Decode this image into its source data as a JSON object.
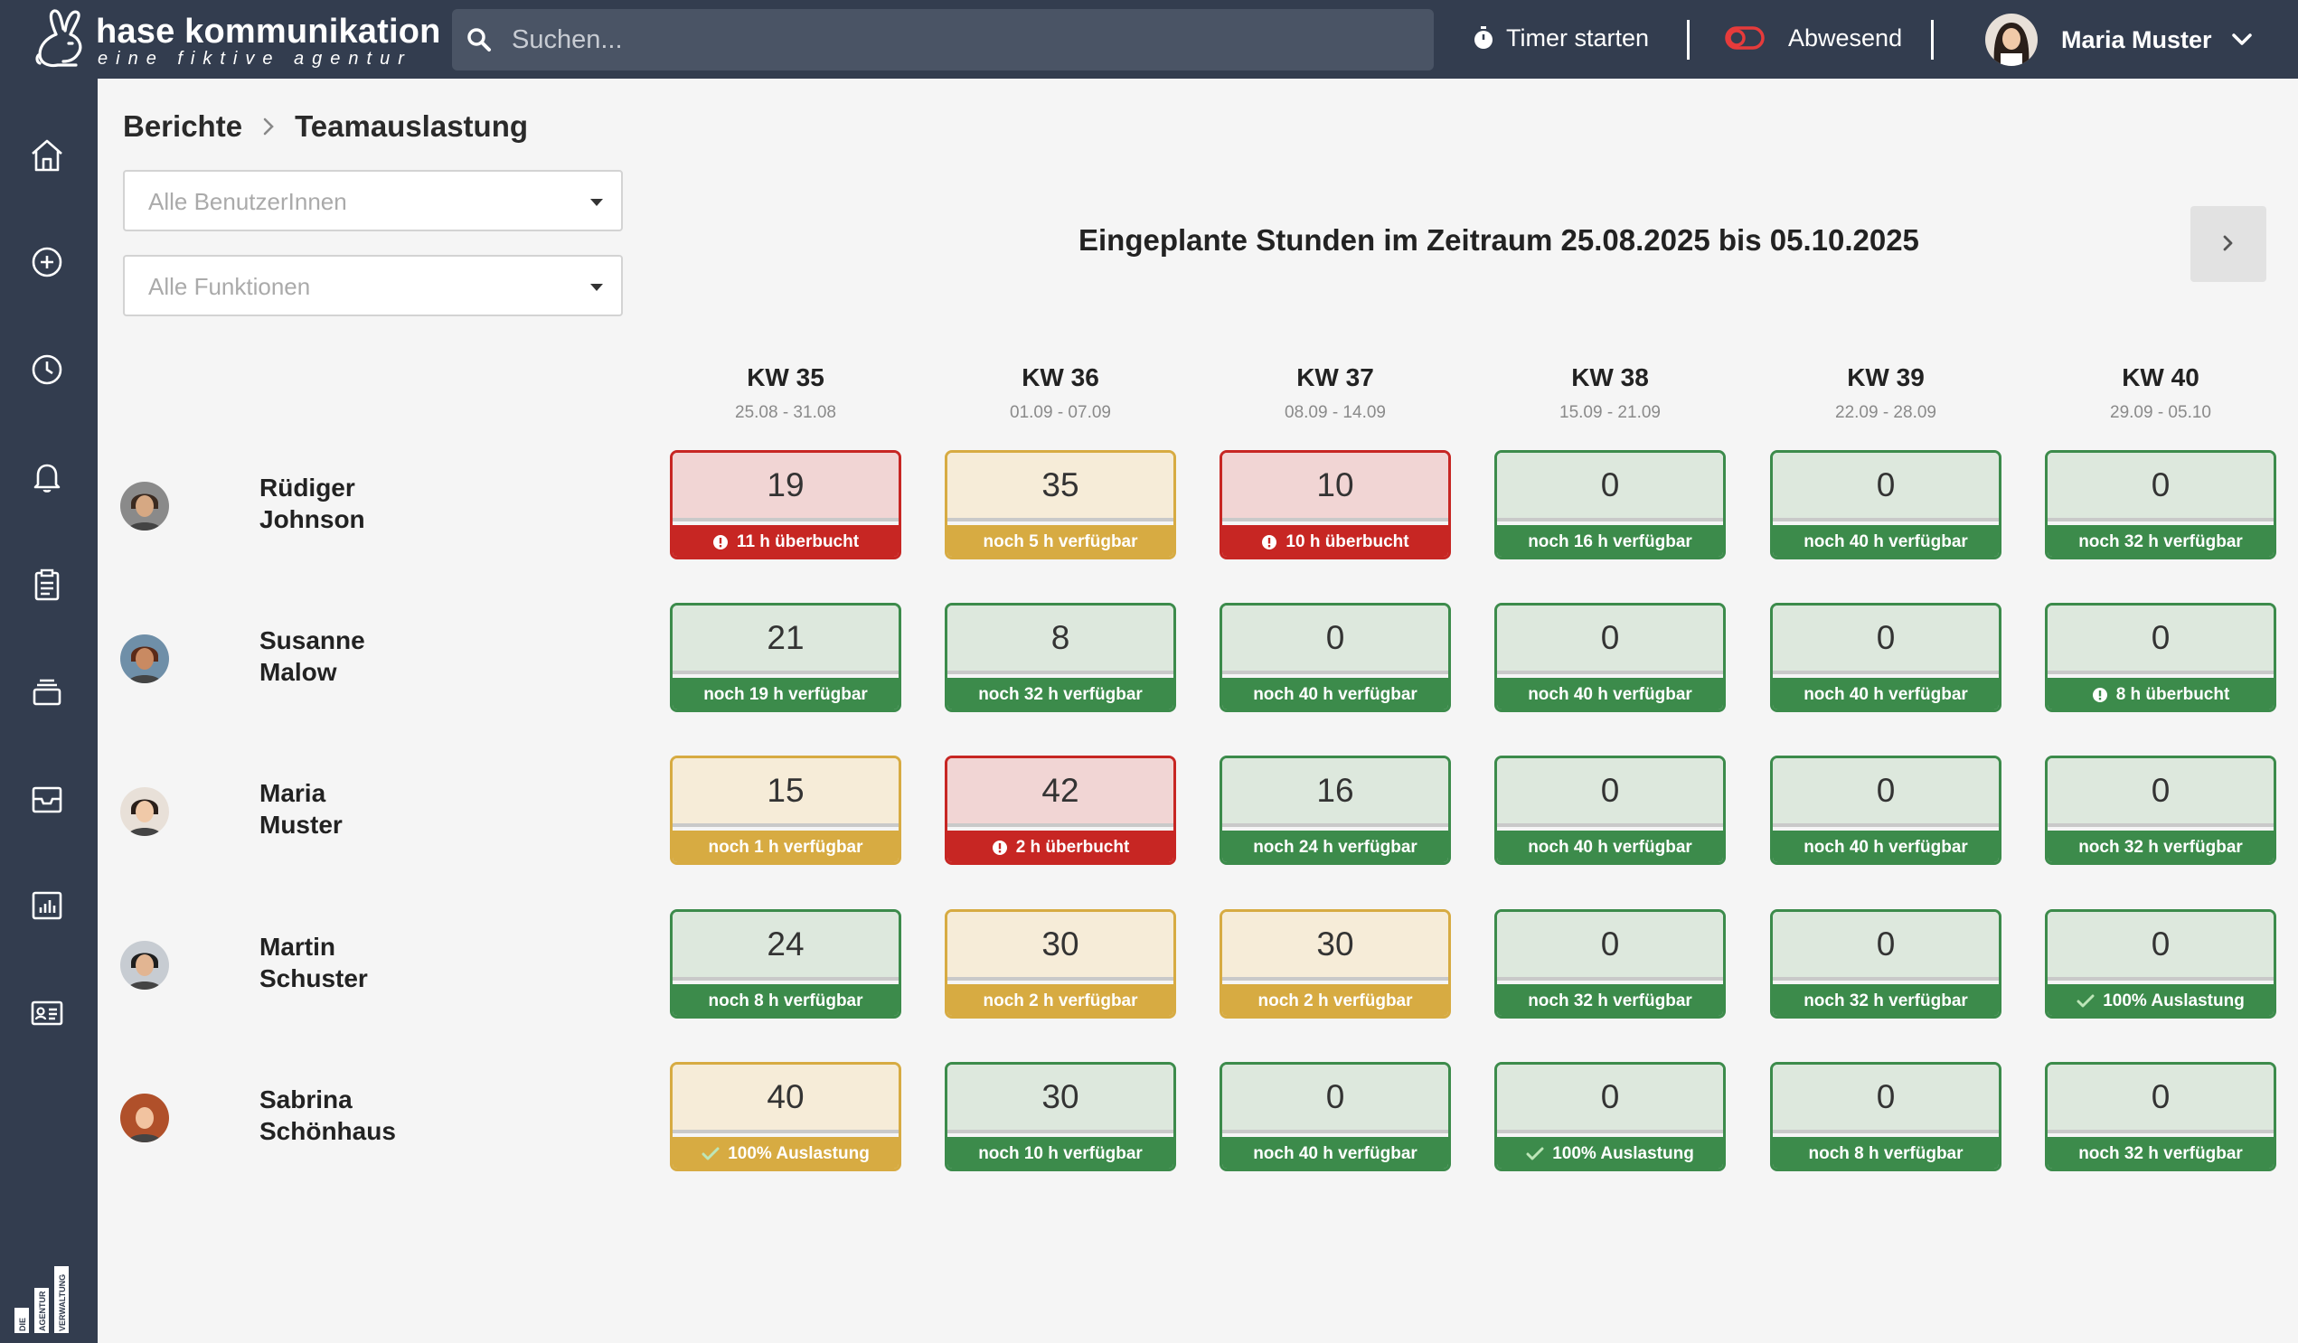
{
  "brand": {
    "name": "hase kommunikation",
    "tagline": "eine fiktive agentur"
  },
  "search": {
    "placeholder": "Suchen..."
  },
  "header": {
    "timer_label": "Timer starten",
    "status_label": "Abwesend",
    "user_name": "Maria Muster"
  },
  "sidebar": {
    "items": [
      {
        "icon": "home-icon"
      },
      {
        "icon": "plus-circle-icon"
      },
      {
        "icon": "clock-icon"
      },
      {
        "icon": "bell-icon"
      },
      {
        "icon": "clipboard-icon"
      },
      {
        "icon": "stack-icon"
      },
      {
        "icon": "inbox-icon"
      },
      {
        "icon": "chart-icon"
      },
      {
        "icon": "id-card-icon"
      }
    ],
    "brand_text": [
      "DIE",
      "AGENTUR",
      "VERWALTUNG"
    ]
  },
  "breadcrumb": {
    "parent": "Berichte",
    "current": "Teamauslastung"
  },
  "filters": {
    "users_placeholder": "Alle BenutzerInnen",
    "functions_placeholder": "Alle Funktionen"
  },
  "period_title": "Eingeplante Stunden im Zeitraum 25.08.2025 bis 05.10.2025",
  "weeks": [
    {
      "kw": "KW 35",
      "range": "25.08 - 31.08"
    },
    {
      "kw": "KW 36",
      "range": "01.09 - 07.09"
    },
    {
      "kw": "KW 37",
      "range": "08.09 - 14.09"
    },
    {
      "kw": "KW 38",
      "range": "15.09 - 21.09"
    },
    {
      "kw": "KW 39",
      "range": "22.09 - 28.09"
    },
    {
      "kw": "KW 40",
      "range": "29.09 - 05.10"
    }
  ],
  "colors": {
    "green": "#3c8b4b",
    "yellow": "#d7ab42",
    "red": "#c72623",
    "sidebar": "#333d4f"
  },
  "people": [
    {
      "first": "Rüdiger",
      "last": "Johnson",
      "cells": [
        {
          "value": "19",
          "status": "red",
          "info": "11 h überbucht",
          "icon": "alert-icon"
        },
        {
          "value": "35",
          "status": "yellow",
          "info": "noch 5 h verfügbar"
        },
        {
          "value": "10",
          "status": "red",
          "info": "10 h überbucht",
          "icon": "alert-icon"
        },
        {
          "value": "0",
          "status": "green",
          "info": "noch 16 h verfügbar"
        },
        {
          "value": "0",
          "status": "green",
          "info": "noch 40 h verfügbar"
        },
        {
          "value": "0",
          "status": "green",
          "info": "noch 32 h verfügbar"
        }
      ]
    },
    {
      "first": "Susanne",
      "last": "Malow",
      "cells": [
        {
          "value": "21",
          "status": "green",
          "info": "noch 19 h verfügbar"
        },
        {
          "value": "8",
          "status": "green",
          "info": "noch 32 h verfügbar"
        },
        {
          "value": "0",
          "status": "green",
          "info": "noch 40 h verfügbar"
        },
        {
          "value": "0",
          "status": "green",
          "info": "noch 40 h verfügbar"
        },
        {
          "value": "0",
          "status": "green",
          "info": "noch 40 h verfügbar"
        },
        {
          "value": "0",
          "status": "green",
          "info": "8 h überbucht",
          "icon": "alert-icon"
        }
      ]
    },
    {
      "first": "Maria",
      "last": "Muster",
      "cells": [
        {
          "value": "15",
          "status": "yellow",
          "info": "noch 1 h verfügbar"
        },
        {
          "value": "42",
          "status": "red",
          "info": "2 h überbucht",
          "icon": "alert-icon"
        },
        {
          "value": "16",
          "status": "green",
          "info": "noch 24 h verfügbar"
        },
        {
          "value": "0",
          "status": "green",
          "info": "noch 40 h verfügbar"
        },
        {
          "value": "0",
          "status": "green",
          "info": "noch 40 h verfügbar"
        },
        {
          "value": "0",
          "status": "green",
          "info": "noch 32 h verfügbar"
        }
      ]
    },
    {
      "first": "Martin",
      "last": "Schuster",
      "cells": [
        {
          "value": "24",
          "status": "green",
          "info": "noch 8 h verfügbar"
        },
        {
          "value": "30",
          "status": "yellow",
          "info": "noch 2 h verfügbar"
        },
        {
          "value": "30",
          "status": "yellow",
          "info": "noch 2 h verfügbar"
        },
        {
          "value": "0",
          "status": "green",
          "info": "noch 32 h verfügbar"
        },
        {
          "value": "0",
          "status": "green",
          "info": "noch 32 h verfügbar"
        },
        {
          "value": "0",
          "status": "green",
          "info": "100% Auslastung",
          "icon": "check-icon"
        }
      ]
    },
    {
      "first": "Sabrina",
      "last": "Schönhaus",
      "cells": [
        {
          "value": "40",
          "status": "yellow",
          "info": "100% Auslastung",
          "icon": "check-icon"
        },
        {
          "value": "30",
          "status": "green",
          "info": "noch 10 h verfügbar"
        },
        {
          "value": "0",
          "status": "green",
          "info": "noch 40 h verfügbar"
        },
        {
          "value": "0",
          "status": "green",
          "info": "100% Auslastung",
          "icon": "check-icon"
        },
        {
          "value": "0",
          "status": "green",
          "info": "noch 8 h verfügbar"
        },
        {
          "value": "0",
          "status": "green",
          "info": "noch 32 h verfügbar"
        }
      ]
    }
  ]
}
